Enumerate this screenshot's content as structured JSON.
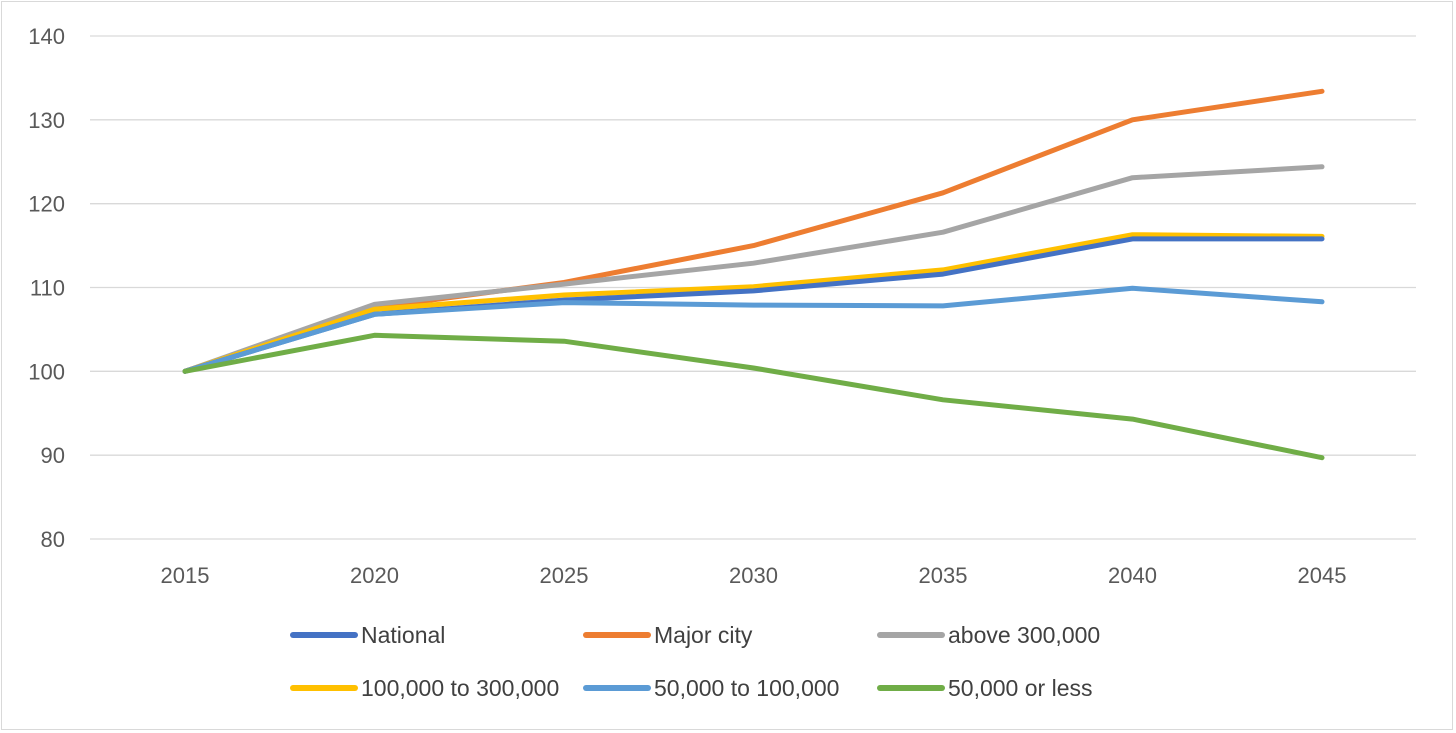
{
  "chart_data": {
    "type": "line",
    "title": "",
    "xlabel": "",
    "ylabel": "",
    "categories": [
      "2015",
      "2020",
      "2025",
      "2030",
      "2035",
      "2040",
      "2045"
    ],
    "ylim": [
      80,
      140
    ],
    "yticks": [
      80,
      90,
      100,
      110,
      120,
      130,
      140
    ],
    "grid": true,
    "legend_position": "bottom",
    "series": [
      {
        "name": "National",
        "color": "#4472c4",
        "values": [
          100,
          106.8,
          108.5,
          109.6,
          111.6,
          115.8,
          115.8
        ]
      },
      {
        "name": "Major city",
        "color": "#ed7d31",
        "values": [
          100,
          107.6,
          110.6,
          115.0,
          121.3,
          130.0,
          133.4
        ]
      },
      {
        "name": "above 300,000",
        "color": "#a5a5a5",
        "values": [
          100,
          108.0,
          110.4,
          112.9,
          116.6,
          123.1,
          124.4
        ]
      },
      {
        "name": "100,000 to 300,000",
        "color": "#ffc000",
        "values": [
          100,
          107.4,
          109.1,
          110.1,
          112.1,
          116.3,
          116.1
        ]
      },
      {
        "name": "50,000 to 100,000",
        "color": "#5b9bd5",
        "values": [
          100,
          106.8,
          108.2,
          107.9,
          107.8,
          109.9,
          108.3
        ]
      },
      {
        "name": "50,000 or less",
        "color": "#70ad47",
        "values": [
          100,
          104.3,
          103.6,
          100.4,
          96.6,
          94.3,
          89.7
        ]
      }
    ]
  }
}
